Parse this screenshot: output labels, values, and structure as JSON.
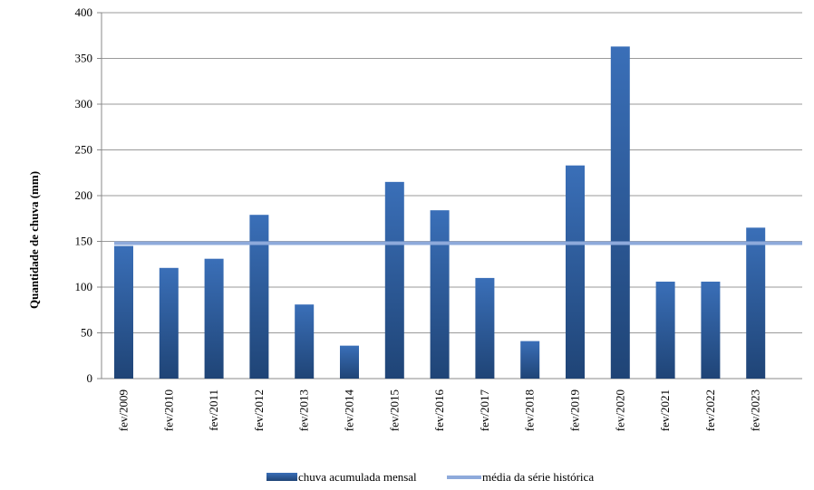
{
  "chart_data": {
    "type": "bar",
    "categories": [
      "fev/2009",
      "fev/2010",
      "fev/2011",
      "fev/2012",
      "fev/2013",
      "fev/2014",
      "fev/2015",
      "fev/2016",
      "fev/2017",
      "fev/2018",
      "fev/2019",
      "fev/2020",
      "fev/2021",
      "fev/2022",
      "fev/2023"
    ],
    "series": [
      {
        "name": "chuva acumulada mensal",
        "type": "bar",
        "color": "#2E5C9E",
        "values": [
          145,
          121,
          131,
          179,
          81,
          36,
          215,
          184,
          110,
          41,
          233,
          363,
          106,
          106,
          165
        ]
      },
      {
        "name": "média da série histórica",
        "type": "line",
        "color": "#8EAADB",
        "value": 148
      }
    ],
    "ylabel": "Quantidade de chuva (mm)",
    "xlabel": "",
    "ylim": [
      0,
      400
    ],
    "yticks": [
      0,
      50,
      100,
      150,
      200,
      250,
      300,
      350,
      400
    ],
    "grid": true,
    "legend": "bottom"
  }
}
